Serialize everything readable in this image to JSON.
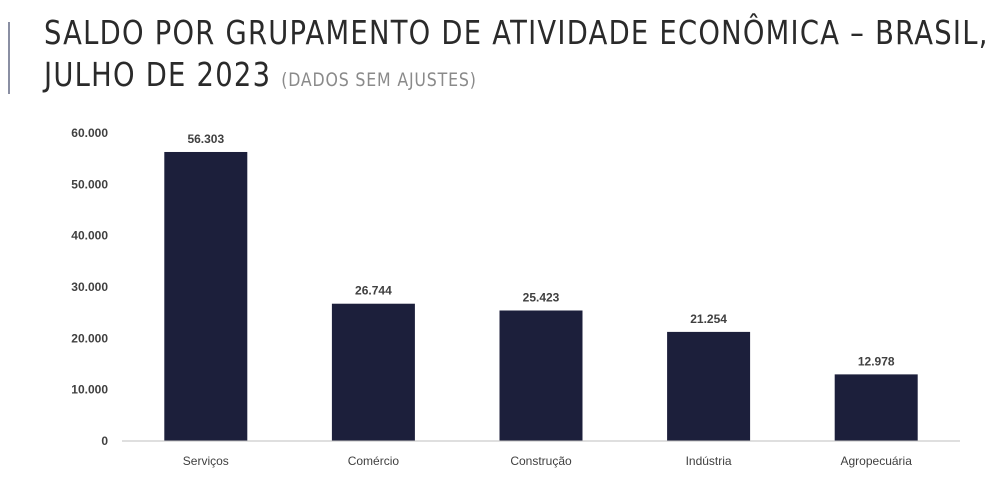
{
  "header": {
    "title_line1": "SALDO POR GRUPAMENTO DE ATIVIDADE ECONÔMICA – BRASIL,",
    "title_line2": "JULHO DE 2023",
    "subtitle": "(DADOS SEM AJUSTES)"
  },
  "chart_data": {
    "type": "bar",
    "categories": [
      "Serviços",
      "Comércio",
      "Construção",
      "Indústria",
      "Agropecuária"
    ],
    "values": [
      56303,
      26744,
      25423,
      21254,
      12978
    ],
    "data_labels": [
      "56.303",
      "26.744",
      "25.423",
      "21.254",
      "12.978"
    ],
    "title": "SALDO POR GRUPAMENTO DE ATIVIDADE ECONÔMICA – BRASIL, JULHO DE 2023",
    "subtitle": "(DADOS SEM AJUSTES)",
    "xlabel": "",
    "ylabel": "",
    "ylim": [
      0,
      60000
    ],
    "yticks": [
      0,
      10000,
      20000,
      30000,
      40000,
      50000,
      60000
    ],
    "ytick_labels": [
      "0",
      "10.000",
      "20.000",
      "30.000",
      "40.000",
      "50.000",
      "60.000"
    ],
    "grid": false,
    "legend": "none",
    "bar_color": "#1c1f3b"
  }
}
